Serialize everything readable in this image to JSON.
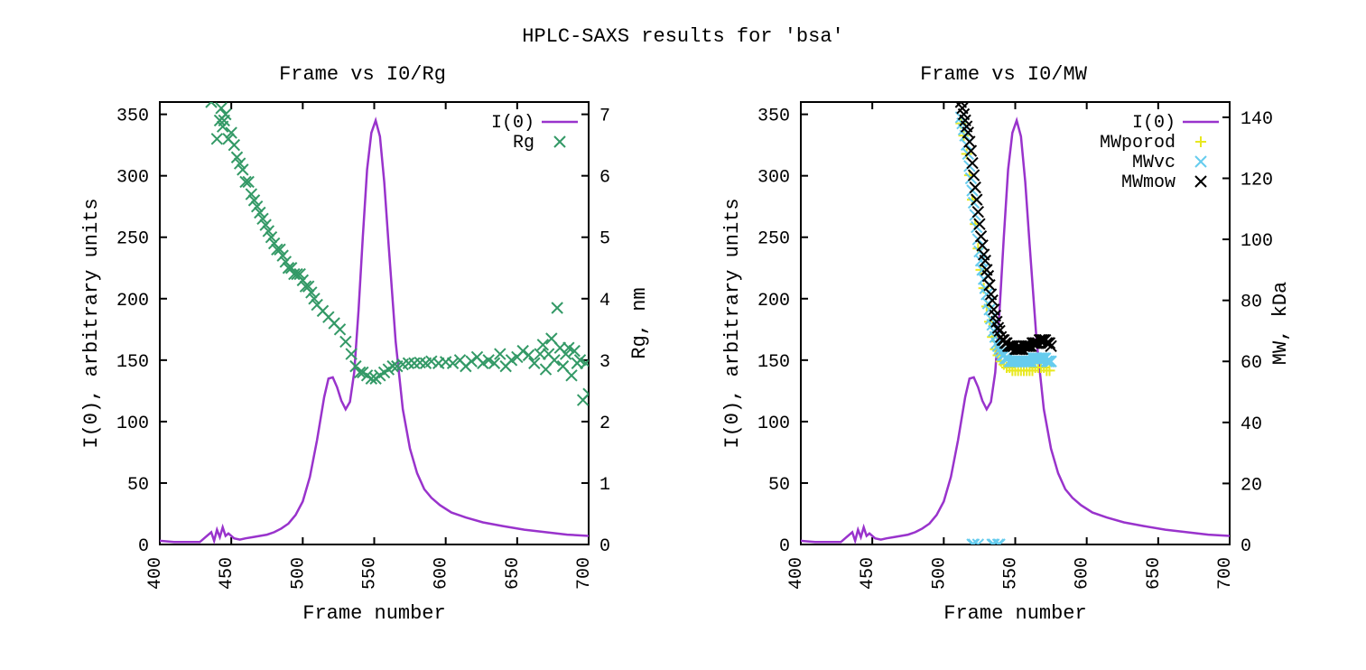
{
  "main_title": "HPLC-SAXS results for 'bsa'",
  "title_fontsize": 22,
  "font_family": "Courier New, monospace",
  "background_color": "#ffffff",
  "colors": {
    "i0_line": "#9933cc",
    "rg_marker": "#339966",
    "mwporod_marker": "#e8e820",
    "mwvc_marker": "#66ccee",
    "mwmow_marker": "#000000",
    "axis": "#000000"
  },
  "left_chart": {
    "title": "Frame vs I0/Rg",
    "x_label": "Frame number",
    "y_left_label": "I(0), arbitrary units",
    "y_right_label": "Rg, nm",
    "xlim": [
      400,
      700
    ],
    "xtick_step": 50,
    "y_left_lim": [
      0,
      360
    ],
    "y_left_tick_step": 50,
    "y_right_lim": [
      0,
      7.2
    ],
    "y_right_tick_step": 1,
    "legend": [
      {
        "label": "I(0)",
        "type": "line",
        "color": "#9933cc"
      },
      {
        "label": "Rg",
        "type": "cross",
        "color": "#339966"
      }
    ],
    "i0_series": [
      [
        400,
        3
      ],
      [
        410,
        2
      ],
      [
        420,
        2
      ],
      [
        428,
        2
      ],
      [
        432,
        6
      ],
      [
        436,
        10
      ],
      [
        438,
        3
      ],
      [
        440,
        12
      ],
      [
        442,
        6
      ],
      [
        444,
        14
      ],
      [
        446,
        7
      ],
      [
        448,
        9
      ],
      [
        452,
        5
      ],
      [
        456,
        4
      ],
      [
        460,
        5
      ],
      [
        465,
        6
      ],
      [
        470,
        7
      ],
      [
        475,
        8
      ],
      [
        480,
        10
      ],
      [
        485,
        13
      ],
      [
        490,
        17
      ],
      [
        495,
        24
      ],
      [
        500,
        35
      ],
      [
        505,
        55
      ],
      [
        510,
        85
      ],
      [
        515,
        120
      ],
      [
        518,
        135
      ],
      [
        521,
        136
      ],
      [
        524,
        128
      ],
      [
        527,
        117
      ],
      [
        530,
        110
      ],
      [
        533,
        116
      ],
      [
        536,
        140
      ],
      [
        539,
        190
      ],
      [
        542,
        250
      ],
      [
        545,
        305
      ],
      [
        548,
        335
      ],
      [
        551,
        345
      ],
      [
        554,
        332
      ],
      [
        557,
        295
      ],
      [
        560,
        245
      ],
      [
        565,
        165
      ],
      [
        570,
        110
      ],
      [
        575,
        78
      ],
      [
        580,
        58
      ],
      [
        585,
        45
      ],
      [
        590,
        38
      ],
      [
        596,
        32
      ],
      [
        604,
        26
      ],
      [
        614,
        22
      ],
      [
        626,
        18
      ],
      [
        640,
        15
      ],
      [
        655,
        12
      ],
      [
        670,
        10
      ],
      [
        685,
        8
      ],
      [
        700,
        7
      ]
    ],
    "rg_series": [
      [
        434,
        7.4
      ],
      [
        436,
        7.2
      ],
      [
        438,
        7.3
      ],
      [
        440,
        6.6
      ],
      [
        442,
        6.9
      ],
      [
        443,
        7.1
      ],
      [
        444,
        6.8
      ],
      [
        445,
        6.9
      ],
      [
        446,
        7.0
      ],
      [
        448,
        6.6
      ],
      [
        450,
        6.7
      ],
      [
        452,
        6.5
      ],
      [
        454,
        6.3
      ],
      [
        456,
        6.2
      ],
      [
        458,
        6.1
      ],
      [
        460,
        5.9
      ],
      [
        462,
        5.9
      ],
      [
        464,
        5.7
      ],
      [
        466,
        5.6
      ],
      [
        468,
        5.5
      ],
      [
        470,
        5.4
      ],
      [
        472,
        5.3
      ],
      [
        474,
        5.2
      ],
      [
        476,
        5.1
      ],
      [
        478,
        5.0
      ],
      [
        480,
        4.9
      ],
      [
        482,
        4.8
      ],
      [
        484,
        4.8
      ],
      [
        486,
        4.7
      ],
      [
        488,
        4.6
      ],
      [
        490,
        4.5
      ],
      [
        492,
        4.5
      ],
      [
        494,
        4.4
      ],
      [
        496,
        4.4
      ],
      [
        498,
        4.4
      ],
      [
        500,
        4.3
      ],
      [
        502,
        4.2
      ],
      [
        504,
        4.2
      ],
      [
        506,
        4.1
      ],
      [
        508,
        4.0
      ],
      [
        510,
        3.9
      ],
      [
        514,
        3.8
      ],
      [
        518,
        3.7
      ],
      [
        522,
        3.6
      ],
      [
        526,
        3.5
      ],
      [
        530,
        3.3
      ],
      [
        534,
        3.1
      ],
      [
        537,
        2.9
      ],
      [
        540,
        2.8
      ],
      [
        542,
        2.8
      ],
      [
        545,
        2.75
      ],
      [
        548,
        2.7
      ],
      [
        551,
        2.7
      ],
      [
        554,
        2.75
      ],
      [
        557,
        2.8
      ],
      [
        560,
        2.85
      ],
      [
        563,
        2.9
      ],
      [
        566,
        2.9
      ],
      [
        570,
        2.93
      ],
      [
        574,
        2.95
      ],
      [
        578,
        2.95
      ],
      [
        582,
        2.96
      ],
      [
        586,
        2.95
      ],
      [
        590,
        2.98
      ],
      [
        595,
        2.95
      ],
      [
        600,
        2.97
      ],
      [
        605,
        2.95
      ],
      [
        610,
        3.0
      ],
      [
        614,
        2.9
      ],
      [
        618,
        2.98
      ],
      [
        622,
        3.05
      ],
      [
        626,
        2.95
      ],
      [
        630,
        3.0
      ],
      [
        634,
        2.95
      ],
      [
        638,
        3.1
      ],
      [
        642,
        2.9
      ],
      [
        646,
        3.0
      ],
      [
        650,
        3.05
      ],
      [
        654,
        3.15
      ],
      [
        658,
        3.08
      ],
      [
        662,
        2.95
      ],
      [
        666,
        3.1
      ],
      [
        668,
        3.25
      ],
      [
        670,
        2.85
      ],
      [
        672,
        3.1
      ],
      [
        674,
        3.35
      ],
      [
        676,
        3.0
      ],
      [
        678,
        3.85
      ],
      [
        680,
        3.2
      ],
      [
        682,
        2.9
      ],
      [
        684,
        3.1
      ],
      [
        686,
        3.2
      ],
      [
        688,
        2.75
      ],
      [
        690,
        3.15
      ],
      [
        692,
        2.95
      ],
      [
        694,
        3.0
      ],
      [
        696,
        2.35
      ],
      [
        698,
        2.95
      ],
      [
        700,
        2.45
      ]
    ]
  },
  "right_chart": {
    "title": "Frame vs I0/MW",
    "x_label": "Frame number",
    "y_left_label": "I(0), arbitrary units",
    "y_right_label": "MW, kDa",
    "xlim": [
      400,
      700
    ],
    "xtick_step": 50,
    "y_left_lim": [
      0,
      360
    ],
    "y_left_tick_step": 50,
    "y_right_lim": [
      0,
      145
    ],
    "y_right_tick_step": 20,
    "legend": [
      {
        "label": "I(0)",
        "type": "line",
        "color": "#9933cc"
      },
      {
        "label": "MWporod",
        "type": "plus",
        "color": "#e8e820"
      },
      {
        "label": "MWvc",
        "type": "cross",
        "color": "#66ccee"
      },
      {
        "label": "MWmow",
        "type": "cross",
        "color": "#000000"
      }
    ],
    "i0_series": [
      [
        400,
        3
      ],
      [
        410,
        2
      ],
      [
        420,
        2
      ],
      [
        428,
        2
      ],
      [
        432,
        6
      ],
      [
        436,
        10
      ],
      [
        438,
        3
      ],
      [
        440,
        12
      ],
      [
        442,
        6
      ],
      [
        444,
        14
      ],
      [
        446,
        7
      ],
      [
        448,
        9
      ],
      [
        452,
        5
      ],
      [
        456,
        4
      ],
      [
        460,
        5
      ],
      [
        465,
        6
      ],
      [
        470,
        7
      ],
      [
        475,
        8
      ],
      [
        480,
        10
      ],
      [
        485,
        13
      ],
      [
        490,
        17
      ],
      [
        495,
        24
      ],
      [
        500,
        35
      ],
      [
        505,
        55
      ],
      [
        510,
        85
      ],
      [
        515,
        120
      ],
      [
        518,
        135
      ],
      [
        521,
        136
      ],
      [
        524,
        128
      ],
      [
        527,
        117
      ],
      [
        530,
        110
      ],
      [
        533,
        116
      ],
      [
        536,
        140
      ],
      [
        539,
        190
      ],
      [
        542,
        250
      ],
      [
        545,
        305
      ],
      [
        548,
        335
      ],
      [
        551,
        345
      ],
      [
        554,
        332
      ],
      [
        557,
        295
      ],
      [
        560,
        245
      ],
      [
        565,
        165
      ],
      [
        570,
        110
      ],
      [
        575,
        78
      ],
      [
        580,
        58
      ],
      [
        585,
        45
      ],
      [
        590,
        38
      ],
      [
        596,
        32
      ],
      [
        604,
        26
      ],
      [
        614,
        22
      ],
      [
        626,
        18
      ],
      [
        640,
        15
      ],
      [
        655,
        12
      ],
      [
        670,
        10
      ],
      [
        685,
        8
      ],
      [
        700,
        7
      ]
    ],
    "mwmow_series": [
      [
        512,
        145
      ],
      [
        513,
        143
      ],
      [
        514,
        141
      ],
      [
        515,
        139
      ],
      [
        516,
        137
      ],
      [
        517,
        135
      ],
      [
        518,
        132
      ],
      [
        519,
        129
      ],
      [
        520,
        125
      ],
      [
        521,
        121
      ],
      [
        522,
        117
      ],
      [
        523,
        113
      ],
      [
        524,
        109
      ],
      [
        525,
        105
      ],
      [
        526,
        101
      ],
      [
        527,
        98
      ],
      [
        528,
        95
      ],
      [
        529,
        93
      ],
      [
        530,
        90
      ],
      [
        531,
        88
      ],
      [
        532,
        85
      ],
      [
        533,
        82
      ],
      [
        534,
        80
      ],
      [
        535,
        77
      ],
      [
        536,
        75
      ],
      [
        537,
        73
      ],
      [
        538,
        71
      ],
      [
        539,
        70
      ],
      [
        540,
        68
      ],
      [
        541,
        67
      ],
      [
        542,
        67
      ],
      [
        543,
        66
      ],
      [
        544,
        66
      ],
      [
        545,
        65
      ],
      [
        546,
        65
      ],
      [
        547,
        65
      ],
      [
        548,
        65
      ],
      [
        549,
        65
      ],
      [
        550,
        64
      ],
      [
        551,
        64
      ],
      [
        552,
        64
      ],
      [
        553,
        64
      ],
      [
        554,
        64
      ],
      [
        555,
        64
      ],
      [
        556,
        65
      ],
      [
        557,
        65
      ],
      [
        558,
        65
      ],
      [
        559,
        65
      ],
      [
        560,
        65
      ],
      [
        561,
        65
      ],
      [
        562,
        66
      ],
      [
        563,
        66
      ],
      [
        564,
        66
      ],
      [
        565,
        66
      ],
      [
        566,
        66
      ],
      [
        567,
        67
      ],
      [
        568,
        67
      ],
      [
        569,
        67
      ],
      [
        570,
        67
      ],
      [
        571,
        67
      ],
      [
        572,
        66
      ],
      [
        573,
        66
      ],
      [
        574,
        66
      ],
      [
        575,
        65
      ]
    ],
    "mwvc_series": [
      [
        512,
        140
      ],
      [
        513,
        138
      ],
      [
        514,
        136
      ],
      [
        515,
        134
      ],
      [
        516,
        131
      ],
      [
        517,
        128
      ],
      [
        518,
        124
      ],
      [
        519,
        120
      ],
      [
        520,
        116
      ],
      [
        521,
        112
      ],
      [
        522,
        108
      ],
      [
        523,
        104
      ],
      [
        524,
        100
      ],
      [
        525,
        96
      ],
      [
        526,
        93
      ],
      [
        527,
        90
      ],
      [
        528,
        87
      ],
      [
        529,
        84
      ],
      [
        530,
        82
      ],
      [
        531,
        79
      ],
      [
        532,
        77
      ],
      [
        533,
        74
      ],
      [
        534,
        72
      ],
      [
        535,
        70
      ],
      [
        536,
        68
      ],
      [
        537,
        66
      ],
      [
        538,
        65
      ],
      [
        539,
        64
      ],
      [
        540,
        63
      ],
      [
        541,
        62
      ],
      [
        542,
        62
      ],
      [
        543,
        61
      ],
      [
        544,
        61
      ],
      [
        545,
        61
      ],
      [
        546,
        60
      ],
      [
        547,
        60
      ],
      [
        548,
        60
      ],
      [
        549,
        60
      ],
      [
        550,
        60
      ],
      [
        551,
        60
      ],
      [
        552,
        60
      ],
      [
        553,
        60
      ],
      [
        554,
        60
      ],
      [
        555,
        60
      ],
      [
        556,
        60
      ],
      [
        557,
        60
      ],
      [
        558,
        60
      ],
      [
        559,
        60
      ],
      [
        560,
        60
      ],
      [
        561,
        60
      ],
      [
        562,
        61
      ],
      [
        563,
        61
      ],
      [
        564,
        61
      ],
      [
        565,
        61
      ],
      [
        566,
        61
      ],
      [
        567,
        61
      ],
      [
        568,
        61
      ],
      [
        569,
        61
      ],
      [
        570,
        61
      ],
      [
        571,
        61
      ],
      [
        572,
        60
      ],
      [
        573,
        60
      ],
      [
        574,
        60
      ],
      [
        575,
        60
      ],
      [
        520,
        0
      ],
      [
        521,
        0
      ],
      [
        524,
        0
      ],
      [
        534,
        0
      ],
      [
        535,
        0
      ],
      [
        538,
        0
      ],
      [
        539,
        0
      ]
    ],
    "mwporod_series": [
      [
        512,
        138
      ],
      [
        514,
        134
      ],
      [
        516,
        128
      ],
      [
        518,
        121
      ],
      [
        520,
        113
      ],
      [
        522,
        105
      ],
      [
        524,
        97
      ],
      [
        526,
        90
      ],
      [
        528,
        84
      ],
      [
        530,
        78
      ],
      [
        532,
        73
      ],
      [
        534,
        68
      ],
      [
        536,
        64
      ],
      [
        538,
        62
      ],
      [
        540,
        60
      ],
      [
        542,
        59
      ],
      [
        544,
        58
      ],
      [
        546,
        58
      ],
      [
        548,
        57
      ],
      [
        550,
        57
      ],
      [
        552,
        57
      ],
      [
        554,
        57
      ],
      [
        556,
        57
      ],
      [
        558,
        57
      ],
      [
        560,
        57
      ],
      [
        562,
        57
      ],
      [
        564,
        58
      ],
      [
        566,
        58
      ],
      [
        568,
        58
      ],
      [
        570,
        58
      ],
      [
        572,
        57
      ],
      [
        574,
        57
      ]
    ]
  }
}
